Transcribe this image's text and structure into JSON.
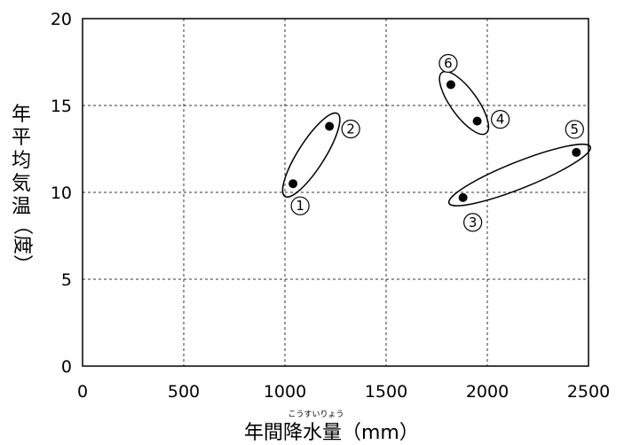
{
  "chart_data": {
    "type": "scatter",
    "title": "",
    "xlabel": "年間降水量（mm）",
    "xlabel_main": "年間降水量",
    "xlabel_unit": "（mm）",
    "xlabel_furigana": "こうすいりょう",
    "ylabel": "年平均気温（度）",
    "ylabel_chars": [
      "年",
      "平",
      "均",
      "気",
      "温"
    ],
    "ylabel_unit": "（度）",
    "xlim": [
      0,
      2500
    ],
    "ylim": [
      0,
      20
    ],
    "xticks": [
      "0",
      "500",
      "1000",
      "1500",
      "2000",
      "2500"
    ],
    "yticks": [
      "0",
      "5",
      "10",
      "15",
      "20"
    ],
    "grid": true,
    "points": [
      {
        "label": "①",
        "x": 1040,
        "y": 10.5
      },
      {
        "label": "②",
        "x": 1220,
        "y": 13.8
      },
      {
        "label": "③",
        "x": 1880,
        "y": 9.7
      },
      {
        "label": "④",
        "x": 1950,
        "y": 14.1
      },
      {
        "label": "⑤",
        "x": 2440,
        "y": 12.3
      },
      {
        "label": "⑥",
        "x": 1820,
        "y": 16.2
      }
    ],
    "groups": [
      {
        "members": [
          "①",
          "②"
        ]
      },
      {
        "members": [
          "⑥",
          "④"
        ]
      },
      {
        "members": [
          "③",
          "⑤"
        ]
      }
    ]
  }
}
